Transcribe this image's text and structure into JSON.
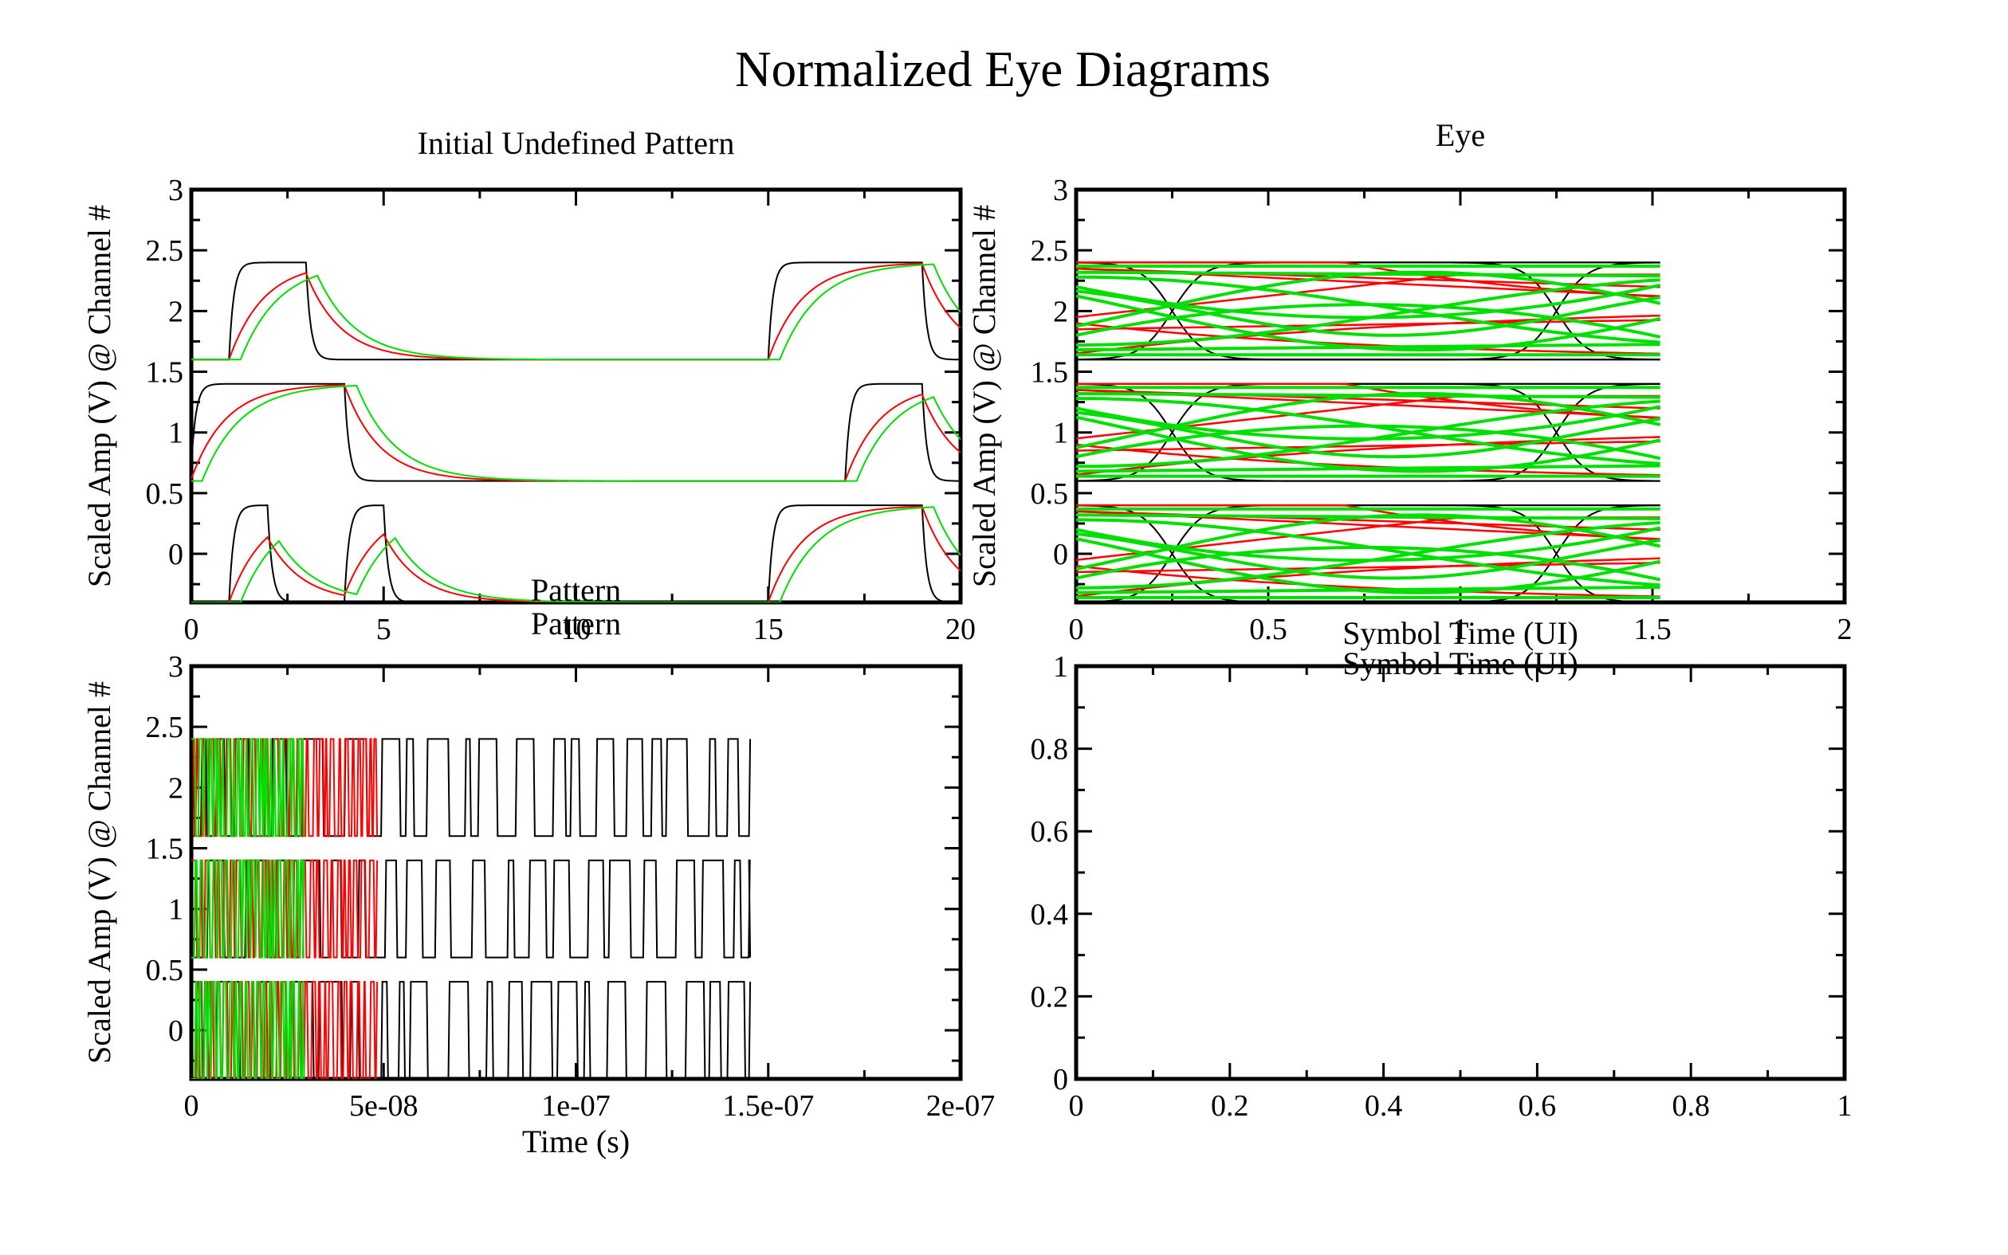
{
  "figure": {
    "title": "Normalized Eye Diagrams"
  },
  "colors": {
    "channel_a": "#000000",
    "channel_b": "#ff0000",
    "channel_c": "#00e000",
    "axis": "#000000"
  },
  "chart_data": [
    {
      "id": "initial",
      "type": "line",
      "title": "Initial Undefined Pattern",
      "xlabel": "Pattern",
      "ylabel": "Scaled Amp (V) @ Channel #",
      "xlim": [
        0,
        20
      ],
      "ylim": [
        -0.4,
        3
      ],
      "xticks": [
        "0",
        "5",
        "10",
        "15",
        "20"
      ],
      "yticks": [
        "0",
        "0.5",
        "1",
        "1.5",
        "2",
        "2.5",
        "3"
      ],
      "channels": [
        {
          "offset": 0,
          "low": -0.4,
          "high": 0.4,
          "hi": [
            [
              1,
              2
            ],
            [
              4,
              5
            ],
            [
              15,
              19
            ]
          ]
        },
        {
          "offset": 1,
          "low": 0.6,
          "high": 1.4,
          "hi": [
            [
              0,
              4
            ],
            [
              17,
              19
            ]
          ]
        },
        {
          "offset": 2,
          "low": 1.6,
          "high": 2.4,
          "hi": [
            [
              1,
              3
            ],
            [
              15,
              19
            ]
          ]
        }
      ],
      "series": [
        {
          "color": "#000000",
          "tau": 0.12,
          "delay": 0.0
        },
        {
          "color": "#ff0000",
          "tau": 0.9,
          "delay": 0.0
        },
        {
          "color": "#00e000",
          "tau": 1.0,
          "delay": 0.3
        }
      ]
    },
    {
      "id": "eye",
      "type": "line",
      "title": "Eye",
      "xlabel": "Symbol Time (UI)",
      "ylabel": "Scaled Amp (V) @ Channel #",
      "xlim": [
        0,
        2
      ],
      "ylim": [
        -0.4,
        3
      ],
      "xticks": [
        "0",
        "0.5",
        "1",
        "1.5",
        "2"
      ],
      "yticks": [
        "0",
        "0.5",
        "1",
        "1.5",
        "2",
        "2.5",
        "3"
      ],
      "trace_end": 1.52,
      "crossing": [
        0.25,
        1.25
      ],
      "bands": [
        {
          "low": -0.4,
          "high": 0.4
        },
        {
          "low": 0.6,
          "high": 1.4
        },
        {
          "low": 1.6,
          "high": 2.4
        }
      ]
    },
    {
      "id": "pattern",
      "type": "line",
      "title": "Pattern",
      "xlabel": "Time (s)",
      "ylabel": "Scaled Amp (V) @ Channel #",
      "xlim": [
        0,
        2e-07
      ],
      "ylim": [
        -0.4,
        3
      ],
      "xticks": [
        "0",
        "5e-08",
        "1e-07",
        "1.5e-07",
        "2e-07"
      ],
      "yticks": [
        "0",
        "0.5",
        "1",
        "1.5",
        "2",
        "2.5",
        "3"
      ],
      "series_extent": {
        "black": 1.45e-07,
        "red": 4.8e-08,
        "green": 2.9e-08
      },
      "bands": [
        {
          "low": -0.4,
          "high": 0.4
        },
        {
          "low": 0.6,
          "high": 1.4
        },
        {
          "low": 1.6,
          "high": 2.4
        }
      ]
    },
    {
      "id": "empty",
      "type": "line",
      "title": "Symbol Time (UI)",
      "xlabel": "",
      "ylabel": "",
      "xlim": [
        0,
        1
      ],
      "ylim": [
        0,
        1
      ],
      "xticks": [
        "0",
        "0.2",
        "0.4",
        "0.6",
        "0.8",
        "1"
      ],
      "yticks": [
        "0",
        "0.2",
        "0.4",
        "0.6",
        "0.8",
        "1"
      ]
    }
  ]
}
